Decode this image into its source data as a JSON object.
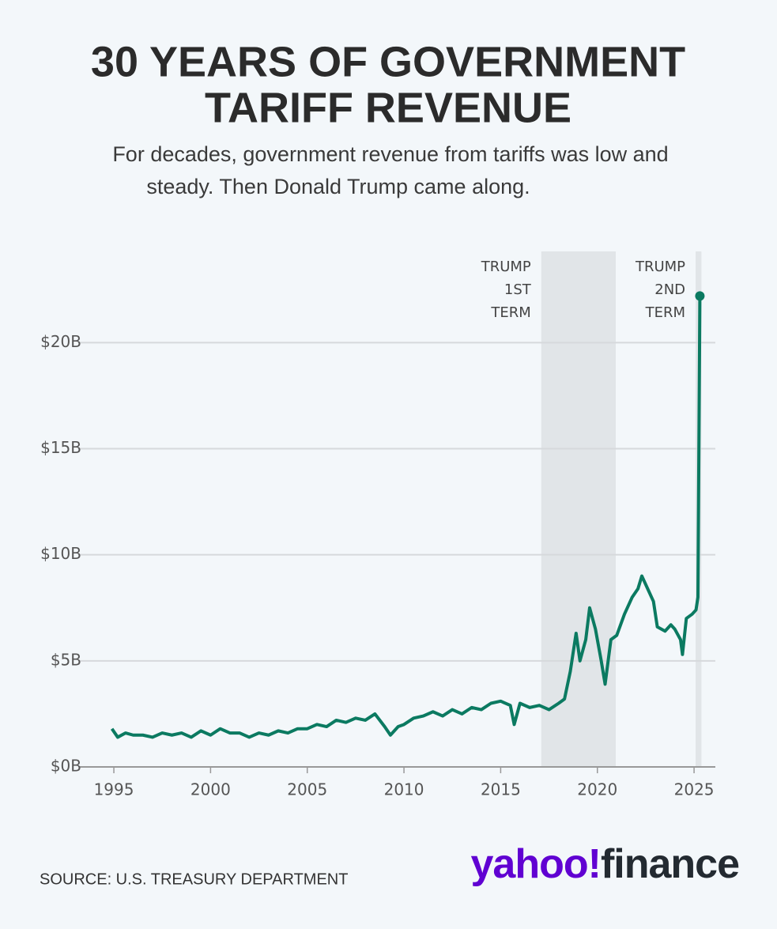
{
  "chart_data": {
    "type": "line",
    "title": [
      "30 YEARS OF GOVERNMENT",
      "TARIFF REVENUE"
    ],
    "subtitle": [
      "For decades, government revenue from tariffs was low and",
      "steady. Then Donald Trump came along."
    ],
    "source": "SOURCE: U.S. TREASURY DEPARTMENT",
    "logo": [
      "yahoo!",
      "finance"
    ],
    "color": "#0b7a61",
    "x": [
      1994.9,
      1995.2,
      1995.6,
      1996.0,
      1996.5,
      1997.0,
      1997.5,
      1998.0,
      1998.5,
      1999.0,
      1999.5,
      2000.0,
      2000.5,
      2001.0,
      2001.5,
      2002.0,
      2002.5,
      2003.0,
      2003.5,
      2004.0,
      2004.5,
      2005.0,
      2005.5,
      2006.0,
      2006.5,
      2007.0,
      2007.5,
      2008.0,
      2008.5,
      2009.0,
      2009.3,
      2009.7,
      2010.0,
      2010.5,
      2011.0,
      2011.5,
      2012.0,
      2012.5,
      2013.0,
      2013.5,
      2014.0,
      2014.5,
      2015.0,
      2015.5,
      2015.7,
      2016.0,
      2016.5,
      2017.0,
      2017.5,
      2018.0,
      2018.3,
      2018.6,
      2018.9,
      2019.1,
      2019.4,
      2019.6,
      2019.9,
      2020.2,
      2020.4,
      2020.7,
      2021.0,
      2021.4,
      2021.8,
      2022.1,
      2022.3,
      2022.6,
      2022.9,
      2023.1,
      2023.5,
      2023.8,
      2024.0,
      2024.3,
      2024.4,
      2024.6,
      2024.9,
      2025.1,
      2025.2,
      2025.3
    ],
    "values": [
      1.8,
      1.4,
      1.6,
      1.5,
      1.5,
      1.4,
      1.6,
      1.5,
      1.6,
      1.4,
      1.7,
      1.5,
      1.8,
      1.6,
      1.6,
      1.4,
      1.6,
      1.5,
      1.7,
      1.6,
      1.8,
      1.8,
      2.0,
      1.9,
      2.2,
      2.1,
      2.3,
      2.2,
      2.5,
      1.9,
      1.5,
      1.9,
      2.0,
      2.3,
      2.4,
      2.6,
      2.4,
      2.7,
      2.5,
      2.8,
      2.7,
      3.0,
      3.1,
      2.9,
      2.0,
      3.0,
      2.8,
      2.9,
      2.7,
      3.0,
      3.2,
      4.5,
      6.3,
      5.0,
      6.0,
      7.5,
      6.5,
      5.0,
      3.9,
      6.0,
      6.2,
      7.2,
      8.0,
      8.4,
      9.0,
      8.4,
      7.8,
      6.6,
      6.4,
      6.7,
      6.5,
      6.0,
      5.3,
      7.0,
      7.2,
      7.4,
      8.0,
      22.2
    ],
    "xlim": [
      1993.2,
      2026.1
    ],
    "ylim": [
      0,
      24.3
    ],
    "xticks": [
      1995,
      2000,
      2005,
      2010,
      2015,
      2020,
      2025
    ],
    "yticks": [
      {
        "value": 0,
        "label": "$0B"
      },
      {
        "value": 5,
        "label": "$5B"
      },
      {
        "value": 10,
        "label": "$10B"
      },
      {
        "value": 15,
        "label": "$15B"
      },
      {
        "value": 20,
        "label": "$20B"
      }
    ],
    "grid": true,
    "shaded": [
      {
        "x": [
          2017.1,
          2020.95
        ],
        "label": [
          "TRUMP",
          "1ST",
          "TERM"
        ],
        "color": "#e1e5e8"
      },
      {
        "x": [
          2025.08,
          2025.38
        ],
        "label": [
          "TRUMP",
          "2ND",
          "TERM"
        ],
        "color": "#e1e5e8"
      }
    ]
  }
}
